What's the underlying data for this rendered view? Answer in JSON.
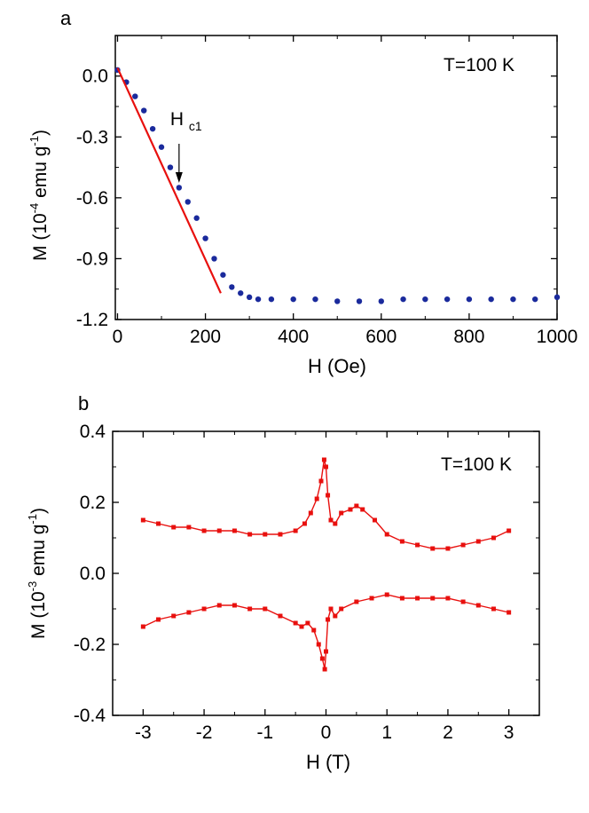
{
  "chart_data": [
    {
      "panel_label": "a",
      "type": "scatter",
      "annotation": "T=100 K",
      "arrow_label": {
        "main": "H",
        "sub": "c1"
      },
      "arrow_x": 140,
      "xlabel": "H (Oe)",
      "ylabel": {
        "prefix": "M (10",
        "exp1": "-4",
        "mid": " emu g",
        "exp2": "-1",
        "suffix": ")"
      },
      "xlim": [
        -5,
        1000
      ],
      "ylim": [
        -1.2,
        0.2
      ],
      "xticks": [
        0,
        200,
        400,
        600,
        800,
        1000
      ],
      "xtick_labels": [
        "0",
        "200",
        "400",
        "600",
        "800",
        "1000"
      ],
      "yticks": [
        0.0,
        -0.3,
        -0.6,
        -0.9,
        -1.2
      ],
      "ytick_labels": [
        "0.0",
        "-0.3",
        "-0.6",
        "-0.9",
        "-1.2"
      ],
      "series": [
        {
          "color": "#1a2a9c",
          "style": "markers",
          "x": [
            0,
            20,
            40,
            60,
            80,
            100,
            120,
            140,
            160,
            180,
            200,
            220,
            240,
            260,
            280,
            300,
            320,
            350,
            400,
            450,
            500,
            550,
            600,
            650,
            700,
            750,
            800,
            850,
            900,
            950,
            1000
          ],
          "y": [
            0.03,
            -0.03,
            -0.1,
            -0.17,
            -0.26,
            -0.35,
            -0.45,
            -0.55,
            -0.62,
            -0.7,
            -0.8,
            -0.9,
            -0.98,
            -1.04,
            -1.07,
            -1.09,
            -1.1,
            -1.1,
            -1.1,
            -1.1,
            -1.11,
            -1.11,
            -1.11,
            -1.1,
            -1.1,
            -1.1,
            -1.1,
            -1.1,
            -1.1,
            -1.1,
            -1.09
          ]
        },
        {
          "color": "#e8100e",
          "style": "line",
          "x": [
            0,
            235
          ],
          "y": [
            0.04,
            -1.07
          ]
        }
      ]
    },
    {
      "panel_label": "b",
      "type": "scatter",
      "annotation": "T=100 K",
      "xlabel": "H (T)",
      "ylabel": {
        "prefix": "M (10",
        "exp1": "-3",
        "mid": " emu g",
        "exp2": "-1",
        "suffix": ")"
      },
      "xlim": [
        -3.5,
        3.5
      ],
      "ylim": [
        -0.4,
        0.4
      ],
      "xticks": [
        -3,
        -2,
        -1,
        0,
        1,
        2,
        3
      ],
      "xtick_labels": [
        "-3",
        "-2",
        "-1",
        "0",
        "1",
        "2",
        "3"
      ],
      "yticks": [
        0.4,
        0.2,
        0.0,
        -0.2,
        -0.4
      ],
      "ytick_labels": [
        "0.4",
        "0.2",
        "0.0",
        "-0.2",
        "-0.4"
      ],
      "series": [
        {
          "color": "#e8100e",
          "style": "line-markers",
          "x": [
            -3.0,
            -2.75,
            -2.5,
            -2.25,
            -2.0,
            -1.75,
            -1.5,
            -1.25,
            -1.0,
            -0.75,
            -0.5,
            -0.35,
            -0.25,
            -0.15,
            -0.08,
            -0.03,
            0.0,
            0.03,
            0.08,
            0.15,
            0.25,
            0.4,
            0.5,
            0.6,
            0.8,
            1.0,
            1.25,
            1.5,
            1.75,
            2.0,
            2.25,
            2.5,
            2.75,
            3.0
          ],
          "y": [
            0.15,
            0.14,
            0.13,
            0.13,
            0.12,
            0.12,
            0.12,
            0.11,
            0.11,
            0.11,
            0.12,
            0.14,
            0.17,
            0.21,
            0.26,
            0.32,
            0.3,
            0.22,
            0.15,
            0.14,
            0.17,
            0.18,
            0.19,
            0.18,
            0.15,
            0.11,
            0.09,
            0.08,
            0.07,
            0.07,
            0.08,
            0.09,
            0.1,
            0.12
          ]
        },
        {
          "color": "#e8100e",
          "style": "line-markers",
          "x": [
            -3.0,
            -2.75,
            -2.5,
            -2.25,
            -2.0,
            -1.75,
            -1.5,
            -1.25,
            -1.0,
            -0.75,
            -0.5,
            -0.4,
            -0.3,
            -0.2,
            -0.12,
            -0.06,
            -0.02,
            0.0,
            0.03,
            0.08,
            0.15,
            0.25,
            0.5,
            0.75,
            1.0,
            1.25,
            1.5,
            1.75,
            2.0,
            2.25,
            2.5,
            2.75,
            3.0
          ],
          "y": [
            -0.15,
            -0.13,
            -0.12,
            -0.11,
            -0.1,
            -0.09,
            -0.09,
            -0.1,
            -0.1,
            -0.12,
            -0.14,
            -0.15,
            -0.14,
            -0.16,
            -0.2,
            -0.24,
            -0.27,
            -0.22,
            -0.13,
            -0.1,
            -0.12,
            -0.1,
            -0.08,
            -0.07,
            -0.06,
            -0.07,
            -0.07,
            -0.07,
            -0.07,
            -0.08,
            -0.09,
            -0.1,
            -0.11
          ]
        }
      ]
    }
  ]
}
